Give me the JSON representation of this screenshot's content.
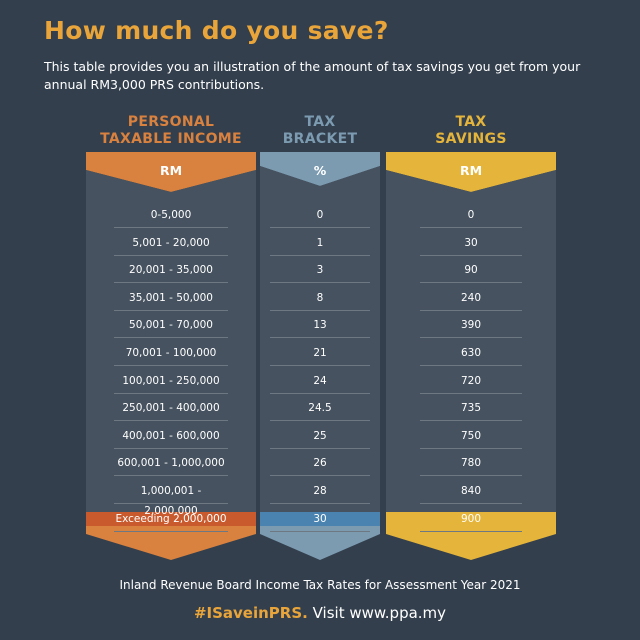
{
  "title": "How much do you save?",
  "subtitle": "This table provides you an illustration of the amount of tax savings you get from your annual RM3,000 PRS contributions.",
  "colors": {
    "income": "#d9813e",
    "bracket": "#7c9bb1",
    "savings": "#e5b43a",
    "background": "#333f4d"
  },
  "columns": {
    "income": {
      "heading_line1": "PERSONAL",
      "heading_line2": "TAXABLE INCOME",
      "unit": "RM",
      "rows": [
        "0-5,000",
        "5,001 - 20,000",
        "20,001 - 35,000",
        "35,001 - 50,000",
        "50,001 - 70,000",
        "70,001 - 100,000",
        "100,001 - 250,000",
        "250,001 - 400,000",
        "400,001 - 600,000",
        "600,001 - 1,000,000",
        "1,000,001 - 2,000,000",
        "Exceeding 2,000,000"
      ]
    },
    "bracket": {
      "heading_line1": "TAX",
      "heading_line2": "BRACKET",
      "unit": "%",
      "rows": [
        "0",
        "1",
        "3",
        "8",
        "13",
        "21",
        "24",
        "24.5",
        "25",
        "26",
        "28",
        "30"
      ]
    },
    "savings": {
      "heading_line1": "TAX",
      "heading_line2": "SAVINGS",
      "unit": "RM",
      "rows": [
        "0",
        "30",
        "90",
        "240",
        "390",
        "630",
        "720",
        "735",
        "750",
        "780",
        "840",
        "900"
      ]
    }
  },
  "footer": {
    "note": "Inland Revenue Board Income Tax Rates for Assessment Year 2021",
    "hashtag": "#ISaveinPRS.",
    "visit": "Visit www.ppa.my"
  }
}
